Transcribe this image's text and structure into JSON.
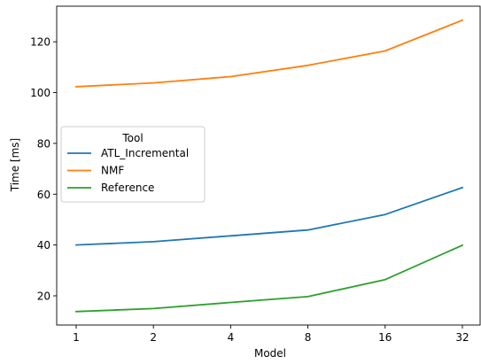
{
  "chart_data": {
    "type": "line",
    "xlabel": "Model",
    "ylabel": "Time [ms]",
    "categories": [
      "1",
      "2",
      "4",
      "8",
      "16",
      "32"
    ],
    "x_scale": "log2",
    "y_ticks": [
      20,
      40,
      60,
      80,
      100,
      120
    ],
    "ylim": [
      8.5,
      134
    ],
    "grid": false,
    "legend": {
      "title": "Tool",
      "placement": "center-left"
    },
    "series": [
      {
        "name": "ATL_Incremental",
        "color": "#1f77b4",
        "values": [
          40.0,
          41.3,
          43.6,
          45.9,
          52.0,
          62.6
        ]
      },
      {
        "name": "NMF",
        "color": "#ff7f0e",
        "values": [
          102.3,
          103.8,
          106.3,
          110.7,
          116.4,
          128.5
        ]
      },
      {
        "name": "Reference",
        "color": "#2ca02c",
        "values": [
          13.8,
          15.0,
          17.4,
          19.7,
          26.4,
          39.9
        ]
      }
    ]
  }
}
